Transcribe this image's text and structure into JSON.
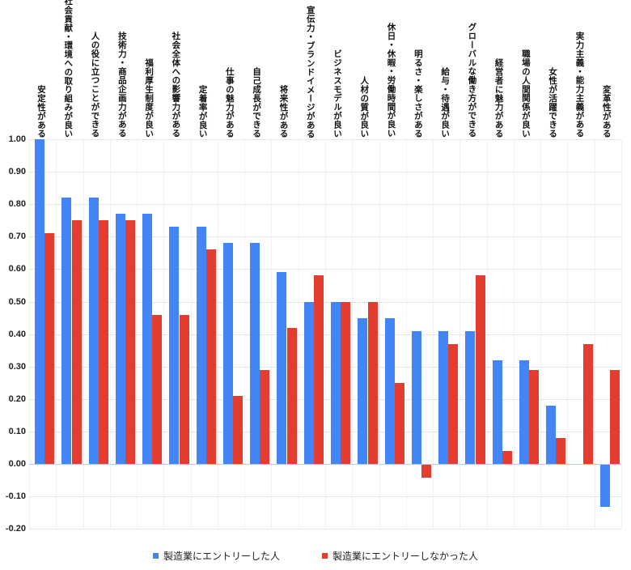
{
  "chart_data": {
    "type": "bar",
    "title": "",
    "xlabel": "",
    "ylabel": "",
    "categories": [
      "安定性がある",
      "社会貢献・環境への取り組みが良い",
      "人の役に立つことができる",
      "技術力・商品企画力がある",
      "福利厚生制度が良い",
      "社会全体への影響力がある",
      "定着率が良い",
      "仕事の魅力がある",
      "自己成長ができる",
      "将来性がある",
      "宣伝力・ブランドイメージがある",
      "ビジネスモデルが良い",
      "人材の質が良い",
      "休日・休暇・労働時間が良い",
      "明るさ・楽しさがある",
      "給与・待遇が良い",
      "グローバルな働き方ができる",
      "経営者に魅力がある",
      "職場の人間関係が良い",
      "女性が活躍できる",
      "実力主義・能力主義がある",
      "変革性がある"
    ],
    "series": [
      {
        "name": "製造業にエントリーした人",
        "color": "#4285F4",
        "values": [
          1.0,
          0.82,
          0.82,
          0.77,
          0.77,
          0.73,
          0.73,
          0.68,
          0.68,
          0.59,
          0.5,
          0.5,
          0.45,
          0.45,
          0.41,
          0.41,
          0.41,
          0.32,
          0.32,
          0.18,
          0.0,
          -0.13
        ]
      },
      {
        "name": "製造業にエントリーしなかった人",
        "color": "#E23D2E",
        "values": [
          0.71,
          0.75,
          0.75,
          0.75,
          0.46,
          0.46,
          0.66,
          0.21,
          0.29,
          0.42,
          0.58,
          0.5,
          0.5,
          0.25,
          -0.04,
          0.37,
          0.58,
          0.04,
          0.29,
          0.08,
          0.37,
          0.29
        ]
      }
    ],
    "ylim": [
      -0.2,
      1.0
    ],
    "ytick_step": 0.1,
    "ytick_labels": [
      "1.00",
      "0.90",
      "0.80",
      "0.70",
      "0.60",
      "0.50",
      "0.40",
      "0.30",
      "0.20",
      "0.10",
      "0.00",
      "-0.10",
      "-0.20"
    ],
    "grid": true,
    "gridline_color": "#e6e6e6",
    "zero_line_color": "#aecbfa",
    "legend_position": "bottom",
    "category_label_orientation": "vertical"
  }
}
